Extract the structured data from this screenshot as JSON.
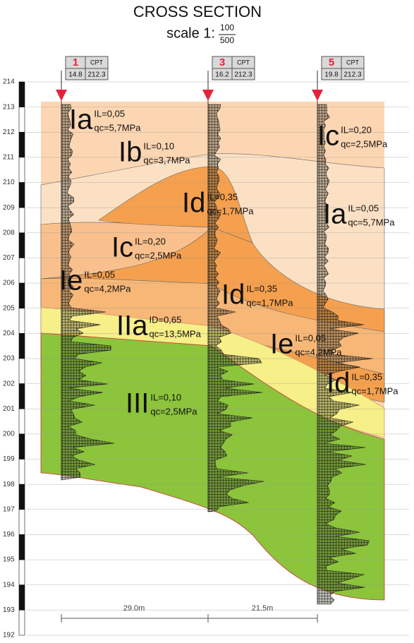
{
  "title": "CROSS SECTION",
  "scale": {
    "prefix": "scale 1:",
    "numerator": "100",
    "denominator": "500"
  },
  "elevation_ticks": [
    214,
    213,
    212,
    211,
    210,
    209,
    208,
    207,
    206,
    205,
    204,
    203,
    202,
    201,
    200,
    199,
    198,
    197,
    196,
    195,
    194,
    193,
    192
  ],
  "boreholes": [
    {
      "number": "1",
      "type": "CPT",
      "depth": "14.8",
      "elevation": "212.3"
    },
    {
      "number": "3",
      "type": "CPT",
      "depth": "16.2",
      "elevation": "212.3"
    },
    {
      "number": "5",
      "type": "CPT",
      "depth": "19.8",
      "elevation": "212.3"
    }
  ],
  "layers": [
    {
      "code": "Ia",
      "params": [
        "IL=0,05",
        "qc=5,7MPa"
      ]
    },
    {
      "code": "Ib",
      "params": [
        "IL=0,10",
        "qc=3,7MPa"
      ]
    },
    {
      "code": "Id",
      "params": [
        "IL=0,35",
        "qc=1,7MPa"
      ]
    },
    {
      "code": "Ic",
      "params": [
        "IL=0,20",
        "qc=2,5MPa"
      ]
    },
    {
      "code": "Ie",
      "params": [
        "IL=0,05",
        "qc=4,2MPa"
      ]
    },
    {
      "code": "IIa",
      "params": [
        "ID=0,65",
        "qc=13,5MPa"
      ]
    },
    {
      "code": "III",
      "params": [
        "IL=0,10",
        "qc=2,5MPa"
      ]
    },
    {
      "code": "Id",
      "params": [
        "IL=0,35",
        "qc=1,7MPa"
      ]
    },
    {
      "code": "Ie",
      "params": [
        "IL=0,05",
        "qc=4,2MPa"
      ]
    },
    {
      "code": "Ic",
      "params": [
        "IL=0,20",
        "qc=2,5MPa"
      ]
    },
    {
      "code": "Ia",
      "params": [
        "IL=0,05",
        "qc=5,7MPa"
      ]
    },
    {
      "code": "Id",
      "params": [
        "IL=0,35",
        "qc=1,7MPa"
      ]
    }
  ],
  "distances": [
    "29.0m",
    "21.5m"
  ]
}
